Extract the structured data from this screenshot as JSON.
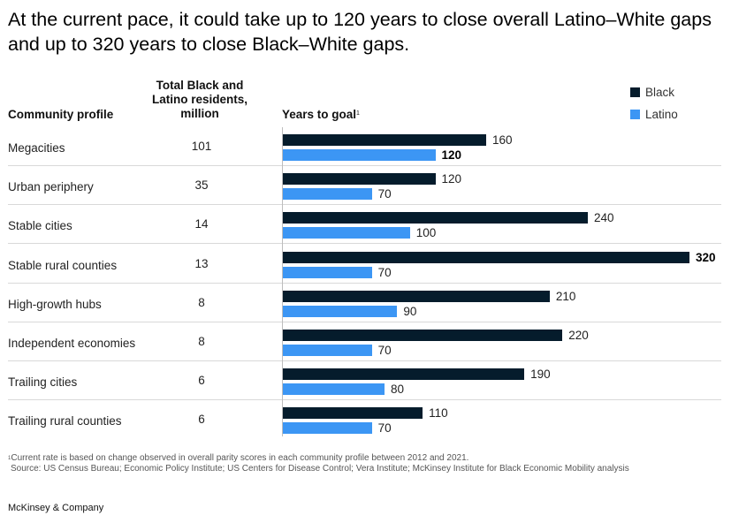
{
  "title": "At the current pace, it could take up to 120 years to close overall Latino–White gaps and up to 320 years to close Black–White gaps.",
  "headers": {
    "profile": "Community profile",
    "total_line1": "Total Black and",
    "total_line2": "Latino residents,",
    "total_line3": "million",
    "years": "Years to goal",
    "years_sup": "1"
  },
  "footnote": {
    "sup": "1",
    "line1": "Current rate is based on change observed in overall parity scores in each community profile between 2012 and 2021.",
    "line2": "Source: US Census Bureau; Economic Policy Institute; US Centers for Disease Control; Vera Institute; McKinsey Institute for Black Economic Mobility analysis"
  },
  "brand": "McKinsey & Company",
  "colors": {
    "black_series": "#051C2C",
    "latino_series": "#3C96F4"
  },
  "chart_data": {
    "type": "bar",
    "orientation": "horizontal",
    "title": "At the current pace, it could take up to 120 years to close overall Latino–White gaps and up to 320 years to close Black–White gaps.",
    "xlabel": "Years to goal",
    "xlim": [
      0,
      320
    ],
    "grid": false,
    "legend": "top-right",
    "categories": [
      "Megacities",
      "Urban periphery",
      "Stable cities",
      "Stable rural counties",
      "High-growth hubs",
      "Independent economies",
      "Trailing cities",
      "Trailing rural counties"
    ],
    "totals": [
      "101",
      "35",
      "14",
      "13",
      "8",
      "8",
      "6",
      "6"
    ],
    "series": [
      {
        "name": "Black",
        "values": [
          160,
          120,
          240,
          320,
          210,
          220,
          190,
          110
        ]
      },
      {
        "name": "Latino",
        "values": [
          120,
          70,
          100,
          70,
          90,
          70,
          80,
          70
        ]
      }
    ],
    "highlighted": [
      [
        3,
        0
      ],
      [
        0,
        1
      ]
    ]
  }
}
